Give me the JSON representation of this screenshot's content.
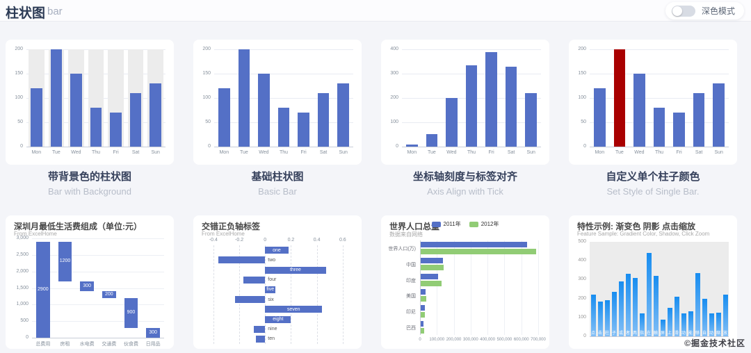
{
  "header": {
    "title": "柱状图",
    "subtitle": "bar",
    "dark_mode_label": "深色模式",
    "dark_mode_on": false
  },
  "watermark": "©掘金技术社区",
  "colors": {
    "blue": "#5470c6",
    "green": "#91cc75",
    "red": "#a90000",
    "gradient_top": "#188df0",
    "gradient_bottom": "#83bff6",
    "bar_background": "#ececec"
  },
  "cards": [
    {
      "title_zh": "带背景色的柱状图",
      "title_en": "Bar with Background"
    },
    {
      "title_zh": "基础柱状图",
      "title_en": "Basic Bar"
    },
    {
      "title_zh": "坐标轴刻度与标签对齐",
      "title_en": "Axis Align with Tick"
    },
    {
      "title_zh": "自定义单个柱子颜色",
      "title_en": "Set Style of Single Bar."
    }
  ],
  "chart_data": [
    {
      "type": "bar",
      "id": "bar-with-background",
      "categories": [
        "Mon",
        "Tue",
        "Wed",
        "Thu",
        "Fri",
        "Sat",
        "Sun"
      ],
      "values": [
        120,
        200,
        150,
        80,
        70,
        110,
        130
      ],
      "ylim": [
        0,
        200
      ],
      "yticks": [
        0,
        50,
        100,
        150,
        200
      ],
      "show_background": true,
      "bar_color": "#5470c6"
    },
    {
      "type": "bar",
      "id": "basic-bar",
      "categories": [
        "Mon",
        "Tue",
        "Wed",
        "Thu",
        "Fri",
        "Sat",
        "Sun"
      ],
      "values": [
        120,
        200,
        150,
        80,
        70,
        110,
        130
      ],
      "ylim": [
        0,
        200
      ],
      "yticks": [
        0,
        50,
        100,
        150,
        200
      ],
      "show_background": false,
      "bar_color": "#5470c6"
    },
    {
      "type": "bar",
      "id": "axis-align-with-tick",
      "categories": [
        "Mon",
        "Tue",
        "Wed",
        "Thu",
        "Fri",
        "Sat",
        "Sun"
      ],
      "values": [
        10,
        52,
        200,
        334,
        390,
        330,
        220
      ],
      "ylim": [
        0,
        400
      ],
      "yticks": [
        0,
        100,
        200,
        300,
        400
      ],
      "show_background": false,
      "bar_color": "#5470c6"
    },
    {
      "type": "bar",
      "id": "set-style-of-single-bar",
      "categories": [
        "Mon",
        "Tue",
        "Wed",
        "Thu",
        "Fri",
        "Sat",
        "Sun"
      ],
      "values": [
        120,
        200,
        150,
        80,
        70,
        110,
        130
      ],
      "ylim": [
        0,
        200
      ],
      "yticks": [
        0,
        50,
        100,
        150,
        200
      ],
      "show_background": false,
      "bar_color": "#5470c6",
      "highlight_index": 1,
      "highlight_color": "#a90000"
    },
    {
      "type": "waterfall",
      "id": "waterfall",
      "title": "深圳月最低生活费组成（单位:元）",
      "subtitle": "From ExcelHome",
      "categories": [
        "总费用",
        "房租",
        "水电费",
        "交通费",
        "伙食费",
        "日用品"
      ],
      "values": [
        2900,
        1200,
        300,
        200,
        900,
        300
      ],
      "bases": [
        0,
        1700,
        1400,
        1200,
        300,
        0
      ],
      "ylim": [
        0,
        3000
      ],
      "yticks": [
        0,
        500,
        1000,
        1500,
        2000,
        2500,
        3000
      ],
      "bar_color": "#5470c6",
      "label_color": "#ffffff"
    },
    {
      "type": "hbar-negative",
      "id": "bar-negative",
      "title": "交错正负轴标签",
      "subtitle": "From ExcelHome",
      "categories": [
        "one",
        "two",
        "three",
        "four",
        "five",
        "six",
        "seven",
        "eight",
        "nine",
        "ten"
      ],
      "values": [
        0.18,
        -0.36,
        0.47,
        -0.17,
        0.08,
        -0.23,
        0.44,
        0.2,
        -0.09,
        -0.07
      ],
      "xlim": [
        -0.48,
        0.66
      ],
      "xticks": [
        -0.4,
        -0.2,
        0,
        0.2,
        0.4,
        0.6
      ],
      "bar_color": "#5470c6"
    },
    {
      "type": "hbar-group",
      "id": "world-population",
      "title": "世界人口总量",
      "subtitle": "数据来自网络",
      "categories": [
        "世界人口(万)",
        "中国",
        "印度",
        "美国",
        "印尼",
        "巴西"
      ],
      "series": [
        {
          "name": "2011年",
          "color": "#5470c6",
          "values": [
            630230,
            131744,
            104970,
            29034,
            23489,
            18203
          ]
        },
        {
          "name": "2012年",
          "color": "#91cc75",
          "values": [
            681807,
            134141,
            121594,
            31000,
            23438,
            19325
          ]
        }
      ],
      "xlim": [
        0,
        700000
      ],
      "xticks": [
        0,
        100000,
        200000,
        300000,
        400000,
        500000,
        600000,
        700000
      ]
    },
    {
      "type": "bar",
      "id": "gradient-shadow-zoom",
      "title": "特性示例: 渐变色 阴影 点击缩放",
      "subtitle": "Feature Sample: Gradient Color, Shadow, Click Zoom",
      "categories": [
        "点",
        "击",
        "柱",
        "子",
        "或",
        "者",
        "两",
        "指",
        "在",
        "触",
        "屏",
        "上",
        "滑",
        "动",
        "能",
        "够",
        "自",
        "动",
        "缩",
        "放"
      ],
      "values": [
        220,
        182,
        191,
        234,
        290,
        330,
        310,
        123,
        442,
        321,
        90,
        149,
        210,
        122,
        133,
        334,
        198,
        123,
        125,
        220
      ],
      "ylim": [
        0,
        500
      ],
      "yticks": [
        0,
        100,
        200,
        300,
        400,
        500
      ],
      "show_background": true,
      "gradient": [
        "#188df0",
        "#83bff6"
      ],
      "x_labels_inside": true,
      "tick_color": "#999999"
    }
  ]
}
